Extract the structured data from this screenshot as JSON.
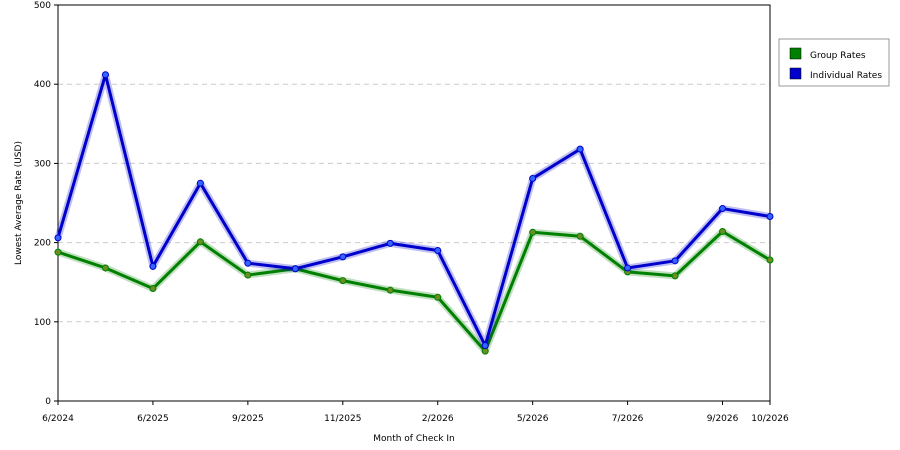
{
  "chart_data": {
    "type": "line",
    "xlabel": "Month of Check In",
    "ylabel": "Lowest Average Rate (USD)",
    "ylim": [
      0,
      500
    ],
    "yticks": [
      0,
      100,
      200,
      300,
      400,
      500
    ],
    "x_tick_labels": [
      "6/2024",
      "6/2025",
      "9/2025",
      "11/2025",
      "2/2026",
      "5/2026",
      "7/2026",
      "9/2026",
      "10/2026"
    ],
    "x_tick_positions": [
      0,
      2,
      4,
      6,
      8,
      10,
      12,
      14,
      15
    ],
    "point_count": 16,
    "grid": true,
    "legend_position": "right",
    "series": [
      {
        "name": "Group Rates",
        "color": "#008000",
        "values": [
          188,
          168,
          142,
          201,
          159,
          167,
          152,
          140,
          131,
          63,
          213,
          208,
          163,
          158,
          214,
          178
        ]
      },
      {
        "name": "Individual Rates",
        "color": "#0000cc",
        "values": [
          206,
          412,
          170,
          275,
          174,
          167,
          182,
          199,
          190,
          70,
          281,
          318,
          168,
          177,
          243,
          233
        ]
      }
    ]
  }
}
